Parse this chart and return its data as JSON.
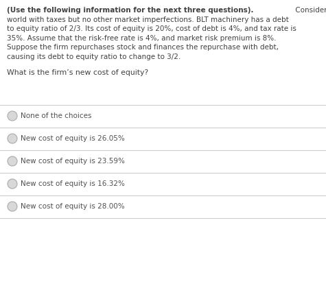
{
  "background_color": "#ffffff",
  "paragraph_bold_part": "(Use the following information for the next three questions).",
  "paragraph_normal_continuation": " Consider a",
  "paragraph_lines": [
    "world with taxes but no other market imperfections. BLT machinery has a debt",
    "to equity ratio of 2/3. Its cost of equity is 20%, cost of debt is 4%, and tax rate is",
    "35%. Assume that the risk-free rate is 4%, and market risk premium is 8%.",
    "Suppose the firm repurchases stock and finances the repurchase with debt,",
    "causing its debt to equity ratio to change to 3/2."
  ],
  "question": "What is the firm’s new cost of equity?",
  "choices": [
    "None of the choices",
    "New cost of equity is 26.05%",
    "New cost of equity is 23.59%",
    "New cost of equity is 16.32%",
    "New cost of equity is 28.00%"
  ],
  "text_color": "#404040",
  "question_color": "#404040",
  "choice_color": "#505050",
  "separator_color": "#cccccc",
  "circle_edge_color": "#aaaaaa",
  "circle_face_color": "#d8d8d8",
  "font_size_paragraph": 7.5,
  "font_size_question": 7.8,
  "font_size_choices": 7.5
}
